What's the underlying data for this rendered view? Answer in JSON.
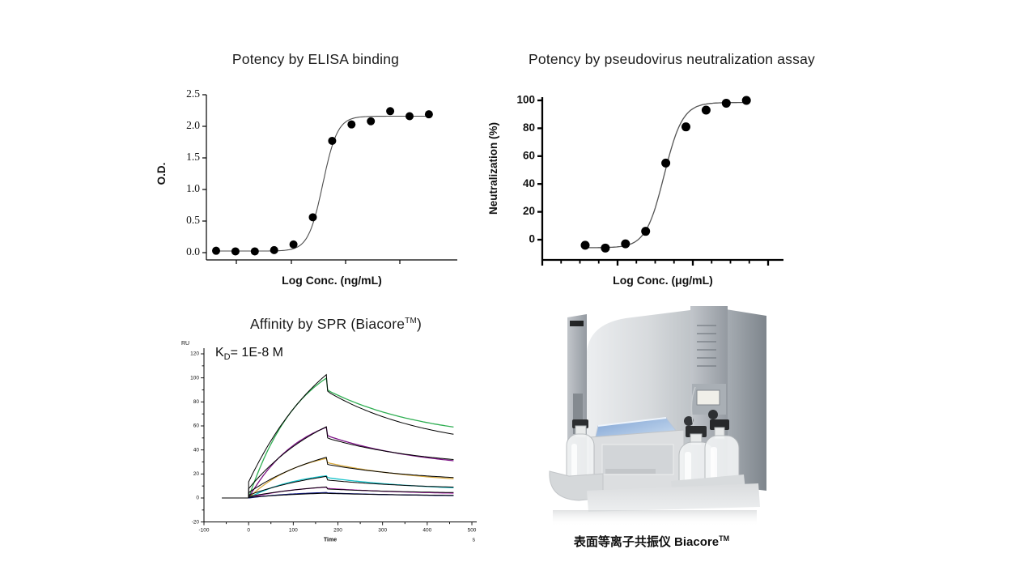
{
  "background": "#ffffff",
  "panels": {
    "elisa": {
      "title": "Potency by ELISA binding"
    },
    "neutralization": {
      "title": "Potency by pseudovirus neutralization assay"
    },
    "spr": {
      "title_prefix": "Affinity by SPR (Biacore",
      "title_tm": "TM",
      "title_suffix": ")",
      "kd_label": "K",
      "kd_sub": "D",
      "kd_value": "= 1E-8 M"
    },
    "instrument": {
      "caption": "表面等离子共振仪 Biacore",
      "caption_tm": "TM"
    }
  },
  "chart_data": [
    {
      "id": "elisa",
      "type": "scatter",
      "title": "Potency by ELISA binding",
      "xlabel": "Log Conc. (ng/mL)",
      "ylabel": "O.D.",
      "ylim": [
        0,
        2.5
      ],
      "yticks": [
        "0.0",
        "0.5",
        "1.0",
        "1.5",
        "2.0",
        "2.5"
      ],
      "x_mode": "log-dilution-series (12 evenly spaced log steps, unlabeled ticks)",
      "values": [
        0.03,
        0.02,
        0.02,
        0.04,
        0.13,
        0.56,
        1.77,
        2.03,
        2.08,
        2.24,
        2.16,
        2.19
      ],
      "fit": {
        "bottom": 0.025,
        "top": 2.16,
        "ec50_index": 6.52,
        "hill": 1.15
      },
      "marker_color": "#000000",
      "curve_color": "#4d4d4d",
      "grid": false
    },
    {
      "id": "neutralization",
      "type": "scatter",
      "title": "Potency by pseudovirus neutralization assay",
      "xlabel": "Log Conc. (μg/mL)",
      "ylabel": "Neutralization (%)",
      "ylim": [
        -10,
        100
      ],
      "yticks": [
        "0",
        "20",
        "40",
        "60",
        "80",
        "100"
      ],
      "x_mode": "log-dilution-series (9 evenly spaced log steps, unlabeled ticks)",
      "values": [
        -4,
        -6,
        -3,
        6,
        55,
        81,
        93,
        98,
        100
      ],
      "fit": {
        "bottom": -5.8,
        "top": 98.5,
        "ec50_index": 4.92,
        "hill": 0.95
      },
      "marker_color": "#000000",
      "curve_color": "#555555",
      "grid": false
    },
    {
      "id": "spr",
      "type": "sensorgram",
      "title": "Affinity by SPR (BiacoreTM)",
      "annotation": "KD= 1E-8 M",
      "y_unit": "RU",
      "xlabel": "Time",
      "x_unit": "s",
      "xlim": [
        -100,
        500
      ],
      "xticks": [
        -100,
        0,
        100,
        200,
        300,
        400,
        500
      ],
      "ylim": [
        -20,
        120
      ],
      "yticks": [
        -20,
        0,
        20,
        40,
        60,
        80,
        100,
        120
      ],
      "baseline_start": -60,
      "association_start": 0,
      "dissociation_start": 175,
      "end_time": 460,
      "series": [
        {
          "name": "conc-1",
          "color": "#2fae52",
          "peak": 100,
          "after_drop": 90,
          "end": 59
        },
        {
          "name": "conc-2",
          "color": "#7b1184",
          "peak": 59,
          "after_drop": 52,
          "end": 31
        },
        {
          "name": "conc-3",
          "color": "#d7a93e",
          "peak": 33,
          "after_drop": 29.5,
          "end": 16
        },
        {
          "name": "conc-4",
          "color": "#15c2ca",
          "peak": 18.5,
          "after_drop": 17,
          "end": 8.5
        },
        {
          "name": "conc-5",
          "color": "#b42cb4",
          "peak": 9,
          "after_drop": 8,
          "end": 4
        },
        {
          "name": "conc-6",
          "color": "#131c85",
          "peak": 4.5,
          "after_drop": 4.2,
          "end": 2
        }
      ],
      "fit_color": "#000000",
      "fits": [
        {
          "peak": 103,
          "after_drop": 89,
          "end": 53
        },
        {
          "peak": 59.5,
          "after_drop": 50,
          "end": 32
        },
        {
          "peak": 34,
          "after_drop": 28,
          "end": 17
        },
        {
          "peak": 18,
          "after_drop": 15,
          "end": 9
        },
        {
          "peak": 9.2,
          "after_drop": 7.5,
          "end": 4.5
        },
        {
          "peak": 4,
          "after_drop": 3.8,
          "end": 2.2
        }
      ],
      "grid": false
    }
  ]
}
